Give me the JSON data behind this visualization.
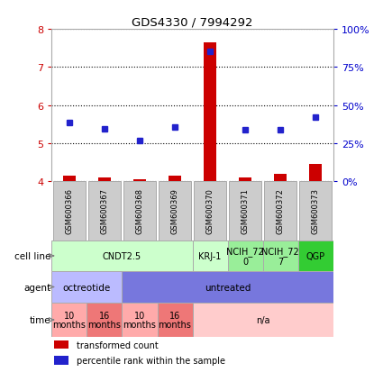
{
  "title": "GDS4330 / 7994292",
  "samples": [
    "GSM600366",
    "GSM600367",
    "GSM600368",
    "GSM600369",
    "GSM600370",
    "GSM600371",
    "GSM600372",
    "GSM600373"
  ],
  "bar_values": [
    4.15,
    4.1,
    4.05,
    4.15,
    7.65,
    4.1,
    4.2,
    4.45
  ],
  "dot_values": [
    5.55,
    5.38,
    5.08,
    5.42,
    7.42,
    5.36,
    5.36,
    5.68
  ],
  "ylim": [
    4.0,
    8.0
  ],
  "yticks_left": [
    4,
    5,
    6,
    7,
    8
  ],
  "yticks_right_labels": [
    "0%",
    "25%",
    "50%",
    "75%",
    "100%"
  ],
  "yticks_right_vals": [
    4.0,
    5.0,
    6.0,
    7.0,
    8.0
  ],
  "bar_color": "#cc0000",
  "dot_color": "#2222cc",
  "cell_line_groups": [
    {
      "text": "CNDT2.5",
      "start": 0,
      "end": 4,
      "color": "#ccffcc"
    },
    {
      "text": "KRJ-1",
      "start": 4,
      "end": 5,
      "color": "#ccffcc"
    },
    {
      "text": "NCIH_72\n0",
      "start": 5,
      "end": 6,
      "color": "#99ee99"
    },
    {
      "text": "NCIH_72\n7",
      "start": 6,
      "end": 7,
      "color": "#99ee99"
    },
    {
      "text": "QGP",
      "start": 7,
      "end": 8,
      "color": "#33cc33"
    }
  ],
  "agent_groups": [
    {
      "text": "octreotide",
      "start": 0,
      "end": 2,
      "color": "#bbbbff"
    },
    {
      "text": "untreated",
      "start": 2,
      "end": 8,
      "color": "#7777dd"
    }
  ],
  "time_groups": [
    {
      "text": "10\nmonths",
      "start": 0,
      "end": 1,
      "color": "#ffaaaa"
    },
    {
      "text": "16\nmonths",
      "start": 1,
      "end": 2,
      "color": "#ee7777"
    },
    {
      "text": "10\nmonths",
      "start": 2,
      "end": 3,
      "color": "#ffaaaa"
    },
    {
      "text": "16\nmonths",
      "start": 3,
      "end": 4,
      "color": "#ee7777"
    },
    {
      "text": "n/a",
      "start": 4,
      "end": 8,
      "color": "#ffcccc"
    }
  ],
  "row_labels": [
    "cell line",
    "agent",
    "time"
  ],
  "legend_bar_label": "transformed count",
  "legend_dot_label": "percentile rank within the sample",
  "bar_color_left": "#cc0000",
  "tick_color_right": "#0000cc",
  "sample_box_color": "#cccccc",
  "border_color": "#aaaaaa"
}
